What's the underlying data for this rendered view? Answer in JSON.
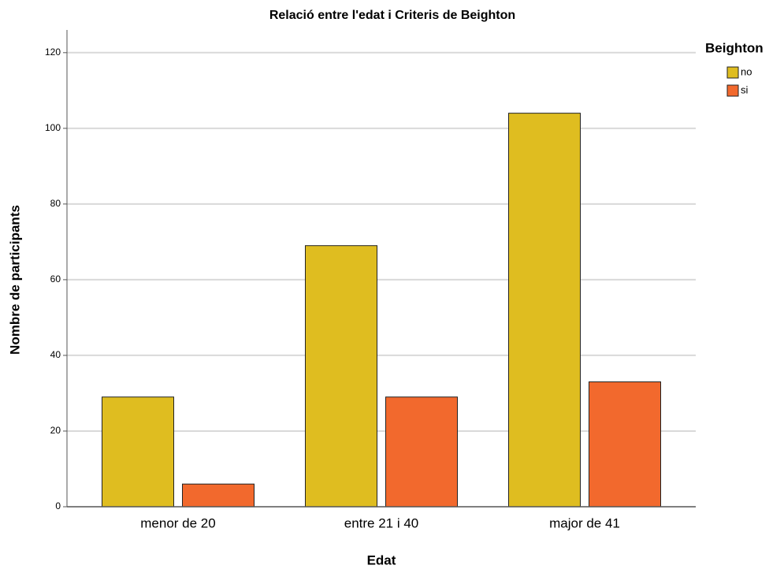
{
  "chart_data": {
    "type": "bar",
    "title": "Relació entre l'edat i Criteris de Beighton",
    "x_label": "Edat",
    "y_label": "Nombre de participants",
    "legend_title": "Beighton",
    "legend_position": "right",
    "categories": [
      "menor de 20",
      "entre 21 i 40",
      "major de 41"
    ],
    "series": [
      {
        "name": "no",
        "color": "#dfbd20",
        "values": [
          29,
          69,
          104
        ]
      },
      {
        "name": "si",
        "color": "#f2692d",
        "values": [
          6,
          29,
          33
        ]
      }
    ],
    "ylim": [
      0,
      126
    ],
    "yticks": [
      0,
      20,
      40,
      60,
      80,
      100,
      120
    ],
    "grid": true
  }
}
